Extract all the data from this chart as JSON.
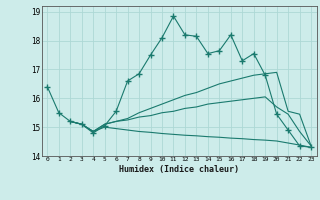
{
  "xlabel": "Humidex (Indice chaleur)",
  "background_color": "#cdecea",
  "grid_color": "#add8d5",
  "line_color": "#1a7a6e",
  "xlim": [
    -0.5,
    23.5
  ],
  "ylim": [
    14,
    19.2
  ],
  "yticks": [
    14,
    15,
    16,
    17,
    18,
    19
  ],
  "xticks": [
    0,
    1,
    2,
    3,
    4,
    5,
    6,
    7,
    8,
    9,
    10,
    11,
    12,
    13,
    14,
    15,
    16,
    17,
    18,
    19,
    20,
    21,
    22,
    23
  ],
  "series": [
    {
      "x": [
        0,
        1,
        2,
        3,
        4,
        5,
        6,
        7,
        8,
        9,
        10,
        11,
        12,
        13,
        14,
        15,
        16,
        17,
        18,
        19,
        20,
        21,
        22,
        23
      ],
      "y": [
        16.4,
        15.5,
        15.2,
        15.1,
        14.8,
        15.05,
        15.55,
        16.6,
        16.85,
        17.5,
        18.1,
        18.85,
        18.2,
        18.15,
        17.55,
        17.65,
        18.2,
        17.3,
        17.55,
        16.8,
        15.45,
        14.9,
        14.35,
        14.3
      ],
      "marker": "+"
    },
    {
      "x": [
        2,
        3,
        4,
        5,
        6,
        7,
        8,
        9,
        10,
        11,
        12,
        13,
        14,
        15,
        16,
        17,
        18,
        19,
        20,
        21,
        22,
        23
      ],
      "y": [
        15.2,
        15.1,
        14.85,
        15.1,
        15.2,
        15.3,
        15.5,
        15.65,
        15.8,
        15.95,
        16.1,
        16.2,
        16.35,
        16.5,
        16.6,
        16.7,
        16.8,
        16.85,
        16.9,
        15.55,
        15.45,
        14.35
      ],
      "marker": null
    },
    {
      "x": [
        2,
        3,
        4,
        5,
        6,
        7,
        8,
        9,
        10,
        11,
        12,
        13,
        14,
        15,
        16,
        17,
        18,
        19,
        20,
        21,
        22,
        23
      ],
      "y": [
        15.2,
        15.1,
        14.85,
        15.1,
        15.2,
        15.25,
        15.35,
        15.4,
        15.5,
        15.55,
        15.65,
        15.7,
        15.8,
        15.85,
        15.9,
        15.95,
        16.0,
        16.05,
        15.7,
        15.45,
        14.85,
        14.35
      ],
      "marker": null
    },
    {
      "x": [
        2,
        3,
        4,
        5,
        6,
        7,
        8,
        9,
        10,
        11,
        12,
        13,
        14,
        15,
        16,
        17,
        18,
        19,
        20,
        21,
        22,
        23
      ],
      "y": [
        15.2,
        15.1,
        14.85,
        15.0,
        14.95,
        14.9,
        14.85,
        14.82,
        14.78,
        14.75,
        14.72,
        14.7,
        14.67,
        14.65,
        14.62,
        14.6,
        14.57,
        14.55,
        14.52,
        14.45,
        14.38,
        14.3
      ],
      "marker": null
    }
  ]
}
